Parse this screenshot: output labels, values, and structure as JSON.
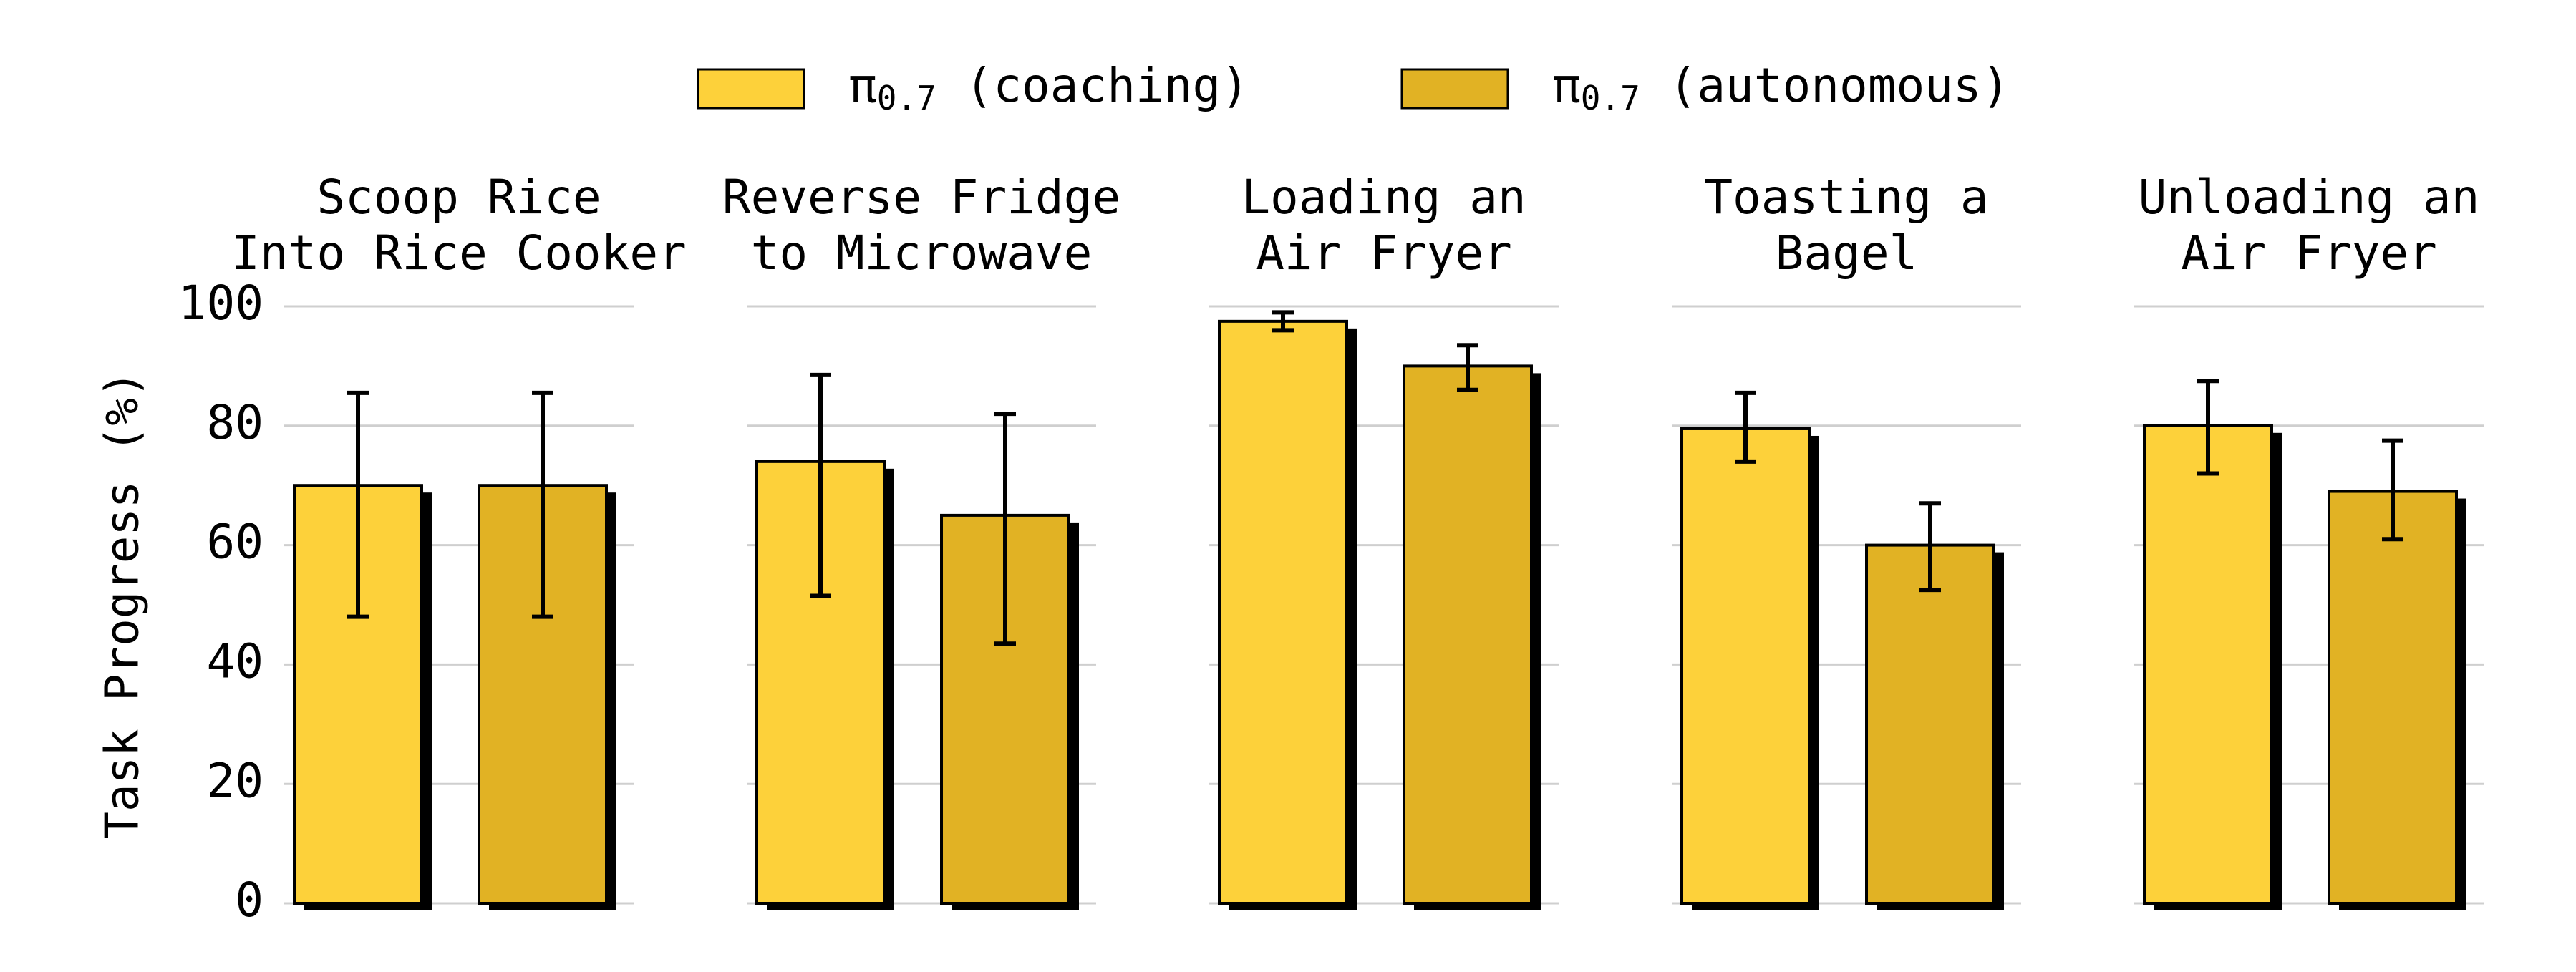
{
  "chart_data": {
    "type": "bar",
    "ylabel": "Task Progress (%)",
    "ylim": [
      0,
      100
    ],
    "yticks": [
      0,
      20,
      40,
      60,
      80,
      100
    ],
    "grid": true,
    "legend_position": "top-center",
    "legend": [
      {
        "symbol": "π",
        "sub": "0.7",
        "label": "(coaching)",
        "color": "#FDD13A"
      },
      {
        "symbol": "π",
        "sub": "0.7",
        "label": "(autonomous)",
        "color": "#E1B224"
      }
    ],
    "series": [
      {
        "name": "π0.7 (coaching)",
        "color": "#FDD13A"
      },
      {
        "name": "π0.7 (autonomous)",
        "color": "#E1B224"
      }
    ],
    "panels": [
      {
        "title": [
          "Scoop Rice",
          "Into Rice Cooker"
        ],
        "values": [
          70,
          70
        ],
        "errors": [
          [
            48,
            85.5
          ],
          [
            48,
            85.5
          ]
        ]
      },
      {
        "title": [
          "Reverse Fridge",
          "to Microwave"
        ],
        "values": [
          74,
          65
        ],
        "errors": [
          [
            51.5,
            88.5
          ],
          [
            43.5,
            82
          ]
        ]
      },
      {
        "title": [
          "Loading an",
          "Air Fryer"
        ],
        "values": [
          97.5,
          90
        ],
        "errors": [
          [
            96,
            99
          ],
          [
            86,
            93.5
          ]
        ]
      },
      {
        "title": [
          "Toasting a",
          "Bagel"
        ],
        "values": [
          79.5,
          60
        ],
        "errors": [
          [
            74,
            85.5
          ],
          [
            52.5,
            67
          ]
        ]
      },
      {
        "title": [
          "Unloading an",
          "Air Fryer"
        ],
        "values": [
          80,
          69
        ],
        "errors": [
          [
            72,
            87.5
          ],
          [
            61,
            77.5
          ]
        ]
      }
    ]
  }
}
